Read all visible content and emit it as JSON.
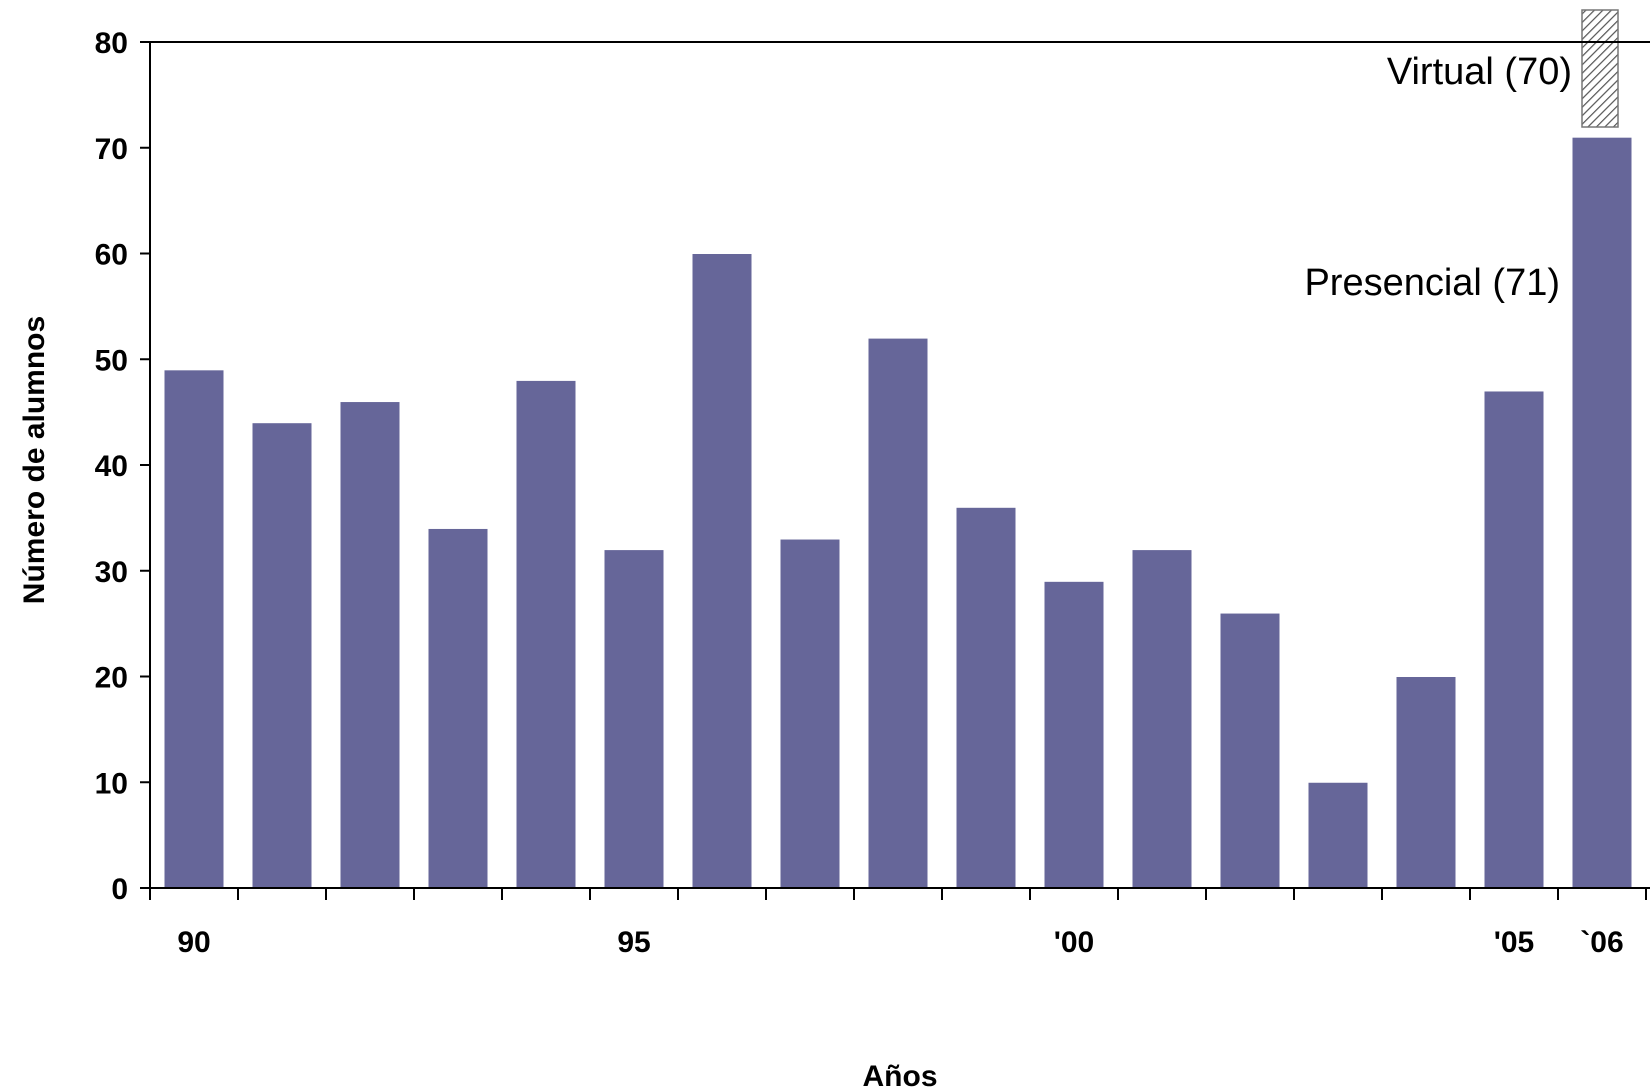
{
  "chart_data": {
    "type": "bar",
    "x": [
      1990,
      1991,
      1992,
      1993,
      1994,
      1995,
      1996,
      1997,
      1998,
      1999,
      2000,
      2001,
      2002,
      2003,
      2004,
      2005,
      2006
    ],
    "series": [
      {
        "values": [
          49,
          44,
          46,
          34,
          48,
          32,
          60,
          33,
          52,
          36,
          29,
          32,
          26,
          10,
          20,
          47,
          71
        ],
        "color": "#666699"
      },
      {
        "name": "Virtual",
        "values": [
          null,
          null,
          null,
          null,
          null,
          null,
          null,
          null,
          null,
          null,
          null,
          null,
          null,
          null,
          null,
          null,
          70
        ],
        "pattern": "diagonal-hatch"
      }
    ],
    "x_tick_labels": [
      "90",
      "95",
      "'00",
      "'05",
      "`06"
    ],
    "y_ticks": [
      "0",
      "10",
      "20",
      "30",
      "40",
      "50",
      "60",
      "70",
      "80"
    ],
    "ylim": [
      0,
      80
    ],
    "xlabel": "Años",
    "ylabel": "Número de alumnos",
    "annotations": [
      "Virtual (70)",
      "Presencial (71)"
    ],
    "grid": false,
    "legend": "none"
  }
}
